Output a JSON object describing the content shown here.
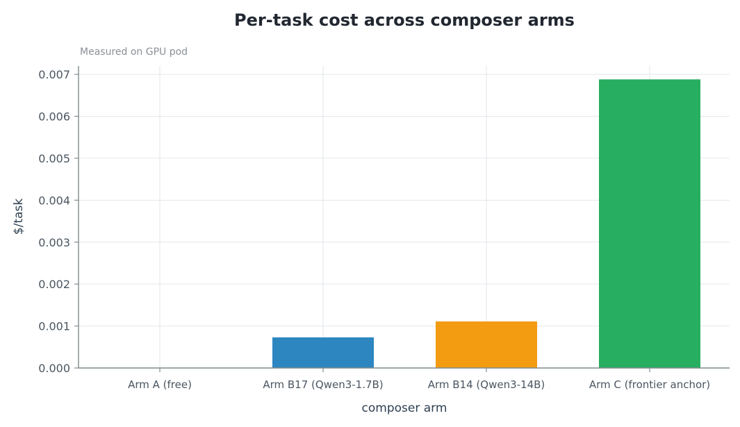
{
  "chart_data": {
    "type": "bar",
    "title": "Per-task cost across composer arms",
    "subtitle": "Measured on GPU pod",
    "xlabel": "composer arm",
    "ylabel": "$/task",
    "categories": [
      "Arm A (free)",
      "Arm B17 (Qwen3-1.7B)",
      "Arm B14 (Qwen3-14B)",
      "Arm C (frontier anchor)"
    ],
    "values": [
      0.0,
      0.00073,
      0.00111,
      0.00688
    ],
    "colors": [
      "#2e86c1",
      "#2e86c1",
      "#f39c12",
      "#27ae60"
    ],
    "ylim": [
      0,
      0.0072
    ],
    "yticks": [
      "0.000",
      "0.001",
      "0.002",
      "0.003",
      "0.004",
      "0.005",
      "0.006",
      "0.007"
    ],
    "grid": true,
    "legend": "none"
  }
}
